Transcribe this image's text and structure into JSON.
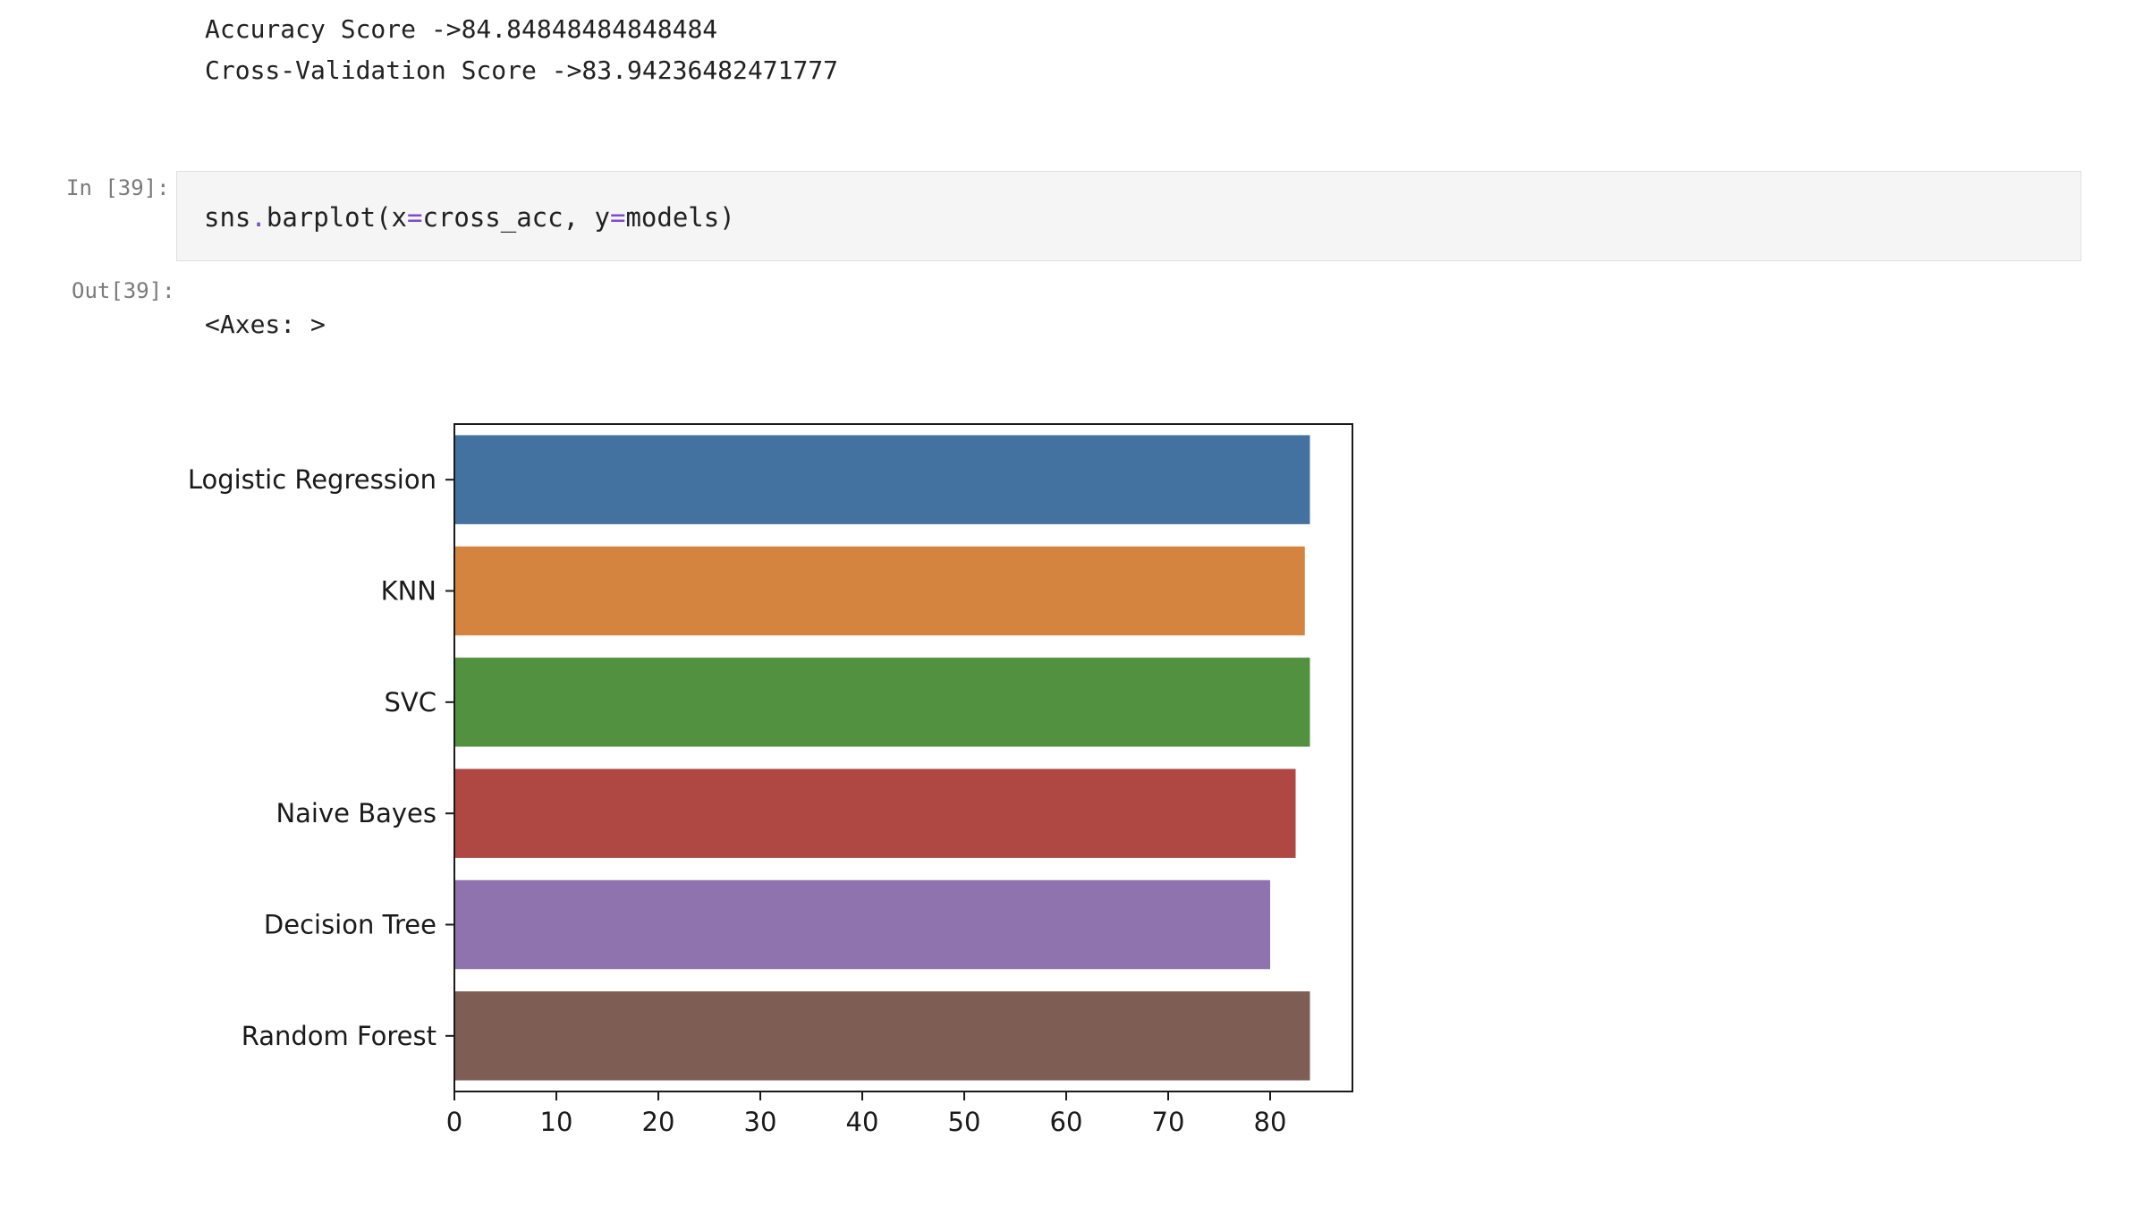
{
  "cell_output_prev": {
    "line1": "Accuracy Score ->84.84848484848484",
    "line2": "Cross-Validation Score ->83.94236482471777"
  },
  "cell_39": {
    "in_prompt": "In [39]:",
    "code": {
      "t1": "sns",
      "t2": ".",
      "t3": "barplot",
      "t4": "(x",
      "t5": "=",
      "t6": "cross_acc, y",
      "t7": "=",
      "t8": "models)"
    },
    "out_prompt": "Out[39]:",
    "out_repr": "<Axes: >"
  },
  "chart_data": {
    "type": "bar",
    "orientation": "horizontal",
    "categories": [
      "Logistic Regression",
      "KNN",
      "SVC",
      "Naive Bayes",
      "Decision Tree",
      "Random Forest"
    ],
    "values": [
      83.9,
      83.4,
      83.9,
      82.5,
      80.0,
      83.9
    ],
    "colors": [
      "#4472a0",
      "#d4843f",
      "#52913f",
      "#af4743",
      "#8f73ae",
      "#7d5d54"
    ],
    "xticks": [
      0,
      10,
      20,
      30,
      40,
      50,
      60,
      70,
      80
    ],
    "xlim": [
      0,
      88.2
    ],
    "grid": false,
    "title": "",
    "xlabel": "",
    "ylabel": ""
  }
}
